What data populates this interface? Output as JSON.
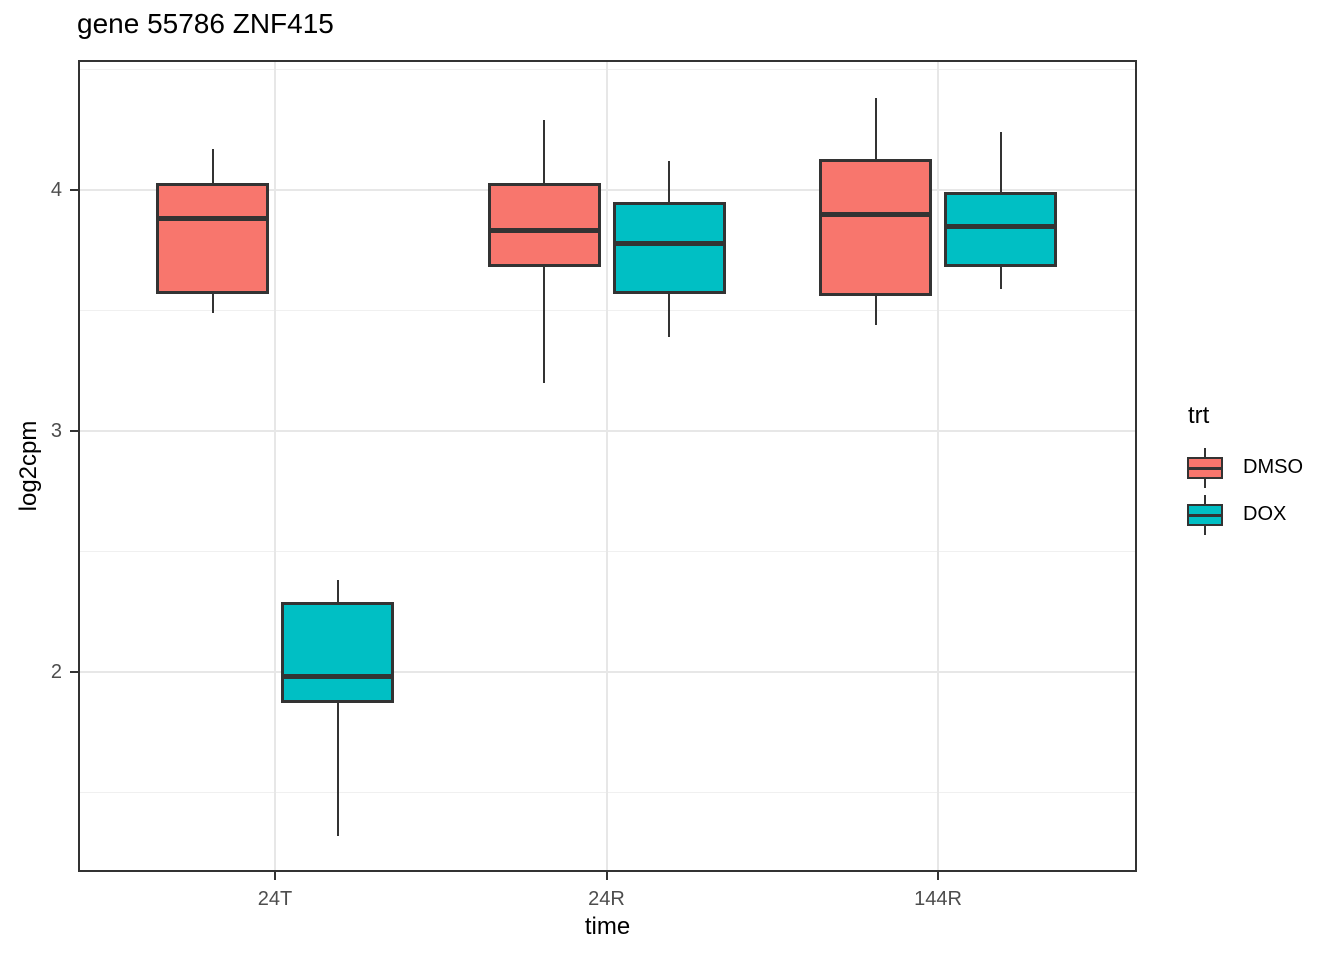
{
  "figure": {
    "title": "gene 55786 ZNF415"
  },
  "chart_data": {
    "type": "boxplot",
    "title": "gene 55786 ZNF415",
    "xlabel": "time",
    "ylabel": "log2cpm",
    "categories": [
      "24T",
      "24R",
      "144R"
    ],
    "y_ticks": [
      2,
      3,
      4
    ],
    "y_minor_ticks": [
      1.5,
      2.5,
      3.5,
      4.5
    ],
    "ylim": [
      1.17,
      4.54
    ],
    "grid": {
      "horizontal": "major+minor",
      "vertical": "major at category centers",
      "background": "white with dark panel border"
    },
    "legend": {
      "title": "trt",
      "position": "right",
      "entries": [
        {
          "label": "DMSO",
          "color": "#F8766D"
        },
        {
          "label": "DOX",
          "color": "#00BFC4"
        }
      ]
    },
    "series": [
      {
        "name": "DMSO",
        "color": "#F8766D",
        "boxes": [
          {
            "category": "24T",
            "whisker_low": 3.49,
            "q1": 3.57,
            "median": 3.88,
            "q3": 4.03,
            "whisker_high": 4.17
          },
          {
            "category": "24R",
            "whisker_low": 3.2,
            "q1": 3.68,
            "median": 3.83,
            "q3": 4.03,
            "whisker_high": 4.29
          },
          {
            "category": "144R",
            "whisker_low": 3.44,
            "q1": 3.56,
            "median": 3.9,
            "q3": 4.13,
            "whisker_high": 4.38
          }
        ]
      },
      {
        "name": "DOX",
        "color": "#00BFC4",
        "boxes": [
          {
            "category": "24T",
            "whisker_low": 1.32,
            "q1": 1.87,
            "median": 1.98,
            "q3": 2.29,
            "whisker_high": 2.38
          },
          {
            "category": "24R",
            "whisker_low": 3.39,
            "q1": 3.57,
            "median": 3.78,
            "q3": 3.95,
            "whisker_high": 4.12
          },
          {
            "category": "144R",
            "whisker_low": 3.59,
            "q1": 3.68,
            "median": 3.85,
            "q3": 3.99,
            "whisker_high": 4.24
          }
        ]
      }
    ],
    "style": {
      "box_border_color": "#333333",
      "median_color": "#333333",
      "whisker_color": "#333333",
      "panel_border_color": "#333333",
      "grid_major_color": "#E7E7E7",
      "grid_minor_color": "#F0F0F0",
      "tick_label_color": "#4D4D4D",
      "tick_mark_color": "#333333"
    }
  }
}
